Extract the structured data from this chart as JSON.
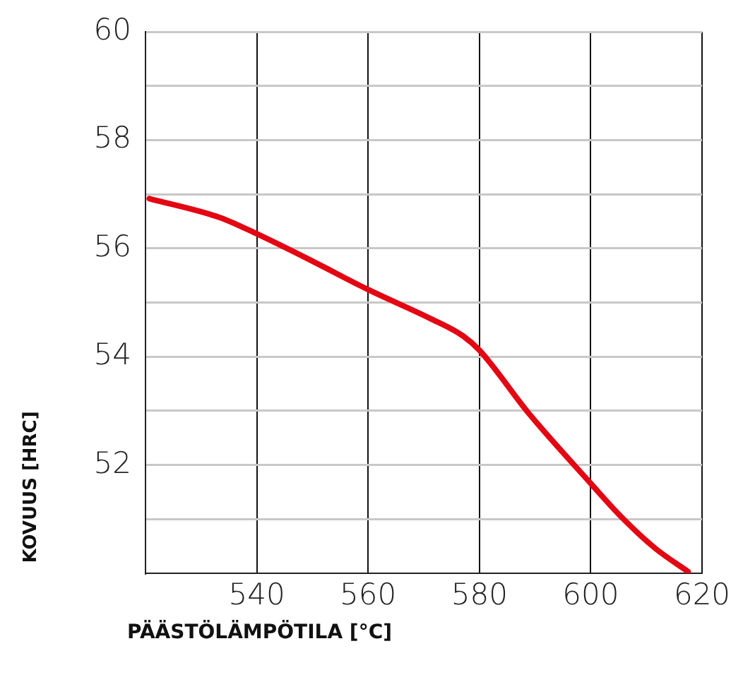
{
  "chart_data": {
    "type": "line",
    "xlabel": "PÄÄSTÖLÄMPÖTILA [°C]",
    "ylabel": "KOVUUS [HRC]",
    "x": [
      520.7,
      533.4,
      540,
      550.3,
      560,
      571.3,
      577.1,
      580,
      588.9,
      600,
      605.7,
      611.6,
      617.5
    ],
    "series": [
      {
        "color": "#e30613",
        "values": [
          56.92,
          56.57,
          56.27,
          55.75,
          55.24,
          54.7,
          54.38,
          54.12,
          52.95,
          51.66,
          51.02,
          50.46,
          50.03
        ]
      }
    ],
    "xlim": [
      520,
      620
    ],
    "xticks": [
      540,
      560,
      580,
      600,
      620
    ],
    "ylim": [
      50,
      60
    ],
    "yticks": [
      {
        "value": 51,
        "label": null
      },
      52,
      {
        "value": 53,
        "label": null
      },
      54,
      {
        "value": 55,
        "label": null
      },
      56,
      {
        "value": 57,
        "label": null
      },
      58,
      {
        "value": 59,
        "label": null
      },
      60
    ],
    "grid": true,
    "legend": false,
    "marker": "none",
    "line_style": "solid"
  }
}
